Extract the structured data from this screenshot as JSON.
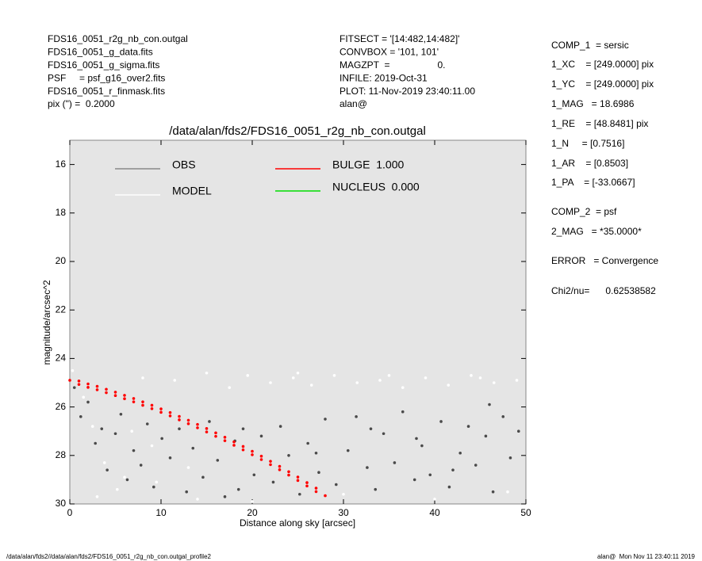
{
  "chart_data": {
    "type": "scatter",
    "title": "/data/alan/fds2/FDS16_0051_r2g_nb_con.outgal",
    "xlabel": "Distance along sky [arcsec]",
    "ylabel": "magnitude/arcsec^2",
    "xlim": [
      0,
      50
    ],
    "xticks": [
      0,
      10,
      20,
      30,
      40,
      50
    ],
    "ylim": [
      30,
      15
    ],
    "yticks": [
      16,
      18,
      20,
      22,
      24,
      26,
      28,
      30
    ],
    "header_left": [
      "FDS16_0051_r2g_nb_con.outgal",
      "FDS16_0051_g_data.fits",
      "FDS16_0051_g_sigma.fits",
      "PSF     = psf_g16_over2.fits",
      "FDS16_0051_r_finmask.fits",
      "pix (\") =  0.2000"
    ],
    "header_mid": [
      "FITSECT = '[14:482,14:482]'",
      "CONVBOX = '101, 101'",
      "MAGZPT  =                  0.",
      "INFILE: 2019-Oct-31",
      "PLOT: 11-Nov-2019 23:40:11.00",
      "alan@"
    ],
    "header_right": [
      "COMP_1  = sersic",
      "1_XC    = [249.0000] pix",
      "1_YC    = [249.0000] pix",
      "1_MAG   = 18.6986",
      "1_RE    = [48.8481] pix",
      "1_N     = [0.7516]",
      "1_AR    = [0.8503]",
      "1_PA    = [-33.0667]",
      "COMP_2  = psf",
      "2_MAG   = *35.0000*",
      "ERROR   = Convergence",
      "Chi2/nu=      0.62538582"
    ],
    "footer_left": "/data/alan/fds2//data/alan/fds2/FDS16_0051_r2g_nb_con.outgal_profile2",
    "footer_right": "alan@  Mon Nov 11 23:40:11 2019",
    "series": [
      {
        "name": "OBS",
        "color": "#4a4a4a",
        "legend_color": "#888888",
        "x": [
          0.5,
          1.2,
          2.0,
          2.8,
          3.5,
          4.1,
          5.0,
          5.6,
          6.3,
          7.0,
          7.8,
          8.5,
          9.2,
          10.1,
          11.0,
          12.0,
          12.8,
          13.5,
          14.6,
          15.3,
          16.2,
          17.0,
          18.1,
          19.0,
          20.2,
          21.0,
          22.3,
          23.1,
          24.0,
          25.2,
          26.1,
          27.3,
          28.0,
          29.2,
          30.5,
          31.4,
          32.6,
          33.5,
          34.4,
          35.6,
          36.5,
          37.8,
          38.6,
          39.5,
          40.7,
          41.6,
          42.8,
          43.7,
          44.5,
          45.6,
          46.4,
          47.5,
          48.3,
          49.2,
          33.0,
          38.0,
          42.0,
          46.0,
          27.0,
          18.5
        ],
        "values": [
          25.2,
          26.4,
          25.8,
          27.5,
          26.9,
          28.6,
          27.1,
          26.3,
          29.0,
          27.8,
          28.4,
          26.7,
          29.3,
          27.3,
          28.1,
          26.9,
          29.5,
          27.7,
          28.9,
          26.6,
          28.2,
          29.7,
          27.4,
          26.9,
          28.8,
          27.2,
          29.1,
          26.8,
          28.0,
          29.6,
          27.5,
          28.7,
          26.5,
          29.2,
          27.8,
          26.4,
          28.5,
          29.4,
          27.1,
          28.3,
          26.2,
          29.0,
          27.6,
          28.8,
          26.6,
          29.3,
          27.9,
          26.8,
          28.4,
          27.2,
          29.5,
          26.4,
          28.1,
          27.0,
          26.9,
          27.3,
          28.6,
          25.9,
          27.9,
          29.4
        ]
      },
      {
        "name": "MODEL",
        "color": "#ffffff",
        "legend_color": "#ffffff",
        "x": [
          0.3,
          1.5,
          2.5,
          3.8,
          5.2,
          6.8,
          8.0,
          9.5,
          11.5,
          13.0,
          15.0,
          17.5,
          19.5,
          22.0,
          24.5,
          26.5,
          29.0,
          31.5,
          34.0,
          36.5,
          39.0,
          41.5,
          44.0,
          46.5,
          49.0,
          3.0,
          6.0,
          9.0,
          14.0,
          20.0,
          30.0,
          40.0,
          48.0,
          25.0,
          35.0,
          45.0
        ],
        "values": [
          24.5,
          25.6,
          26.8,
          28.3,
          29.4,
          27.0,
          24.8,
          29.1,
          24.9,
          28.5,
          24.6,
          25.2,
          24.7,
          25.0,
          24.8,
          25.1,
          24.7,
          25.0,
          24.9,
          25.2,
          24.8,
          25.1,
          24.7,
          25.0,
          24.9,
          29.7,
          28.9,
          27.6,
          29.8,
          29.9,
          29.6,
          29.8,
          29.5,
          24.6,
          24.7,
          24.8
        ]
      },
      {
        "name": "BULGE  1.000",
        "color": "#ff0000",
        "legend_color": "#ff0000",
        "x": [
          0,
          1,
          1,
          2,
          2,
          3,
          3,
          4,
          4,
          5,
          5,
          6,
          6,
          7,
          7,
          8,
          8,
          9,
          9,
          10,
          10,
          11,
          11,
          12,
          12,
          13,
          13,
          14,
          14,
          15,
          15,
          16,
          16,
          17,
          17,
          18,
          18,
          19,
          19,
          20,
          20,
          21,
          21,
          22,
          22,
          23,
          23,
          24,
          24,
          25,
          25,
          26,
          26,
          27,
          27,
          28
        ],
        "values": [
          24.9,
          24.93,
          25.07,
          25.05,
          25.19,
          25.15,
          25.29,
          25.27,
          25.41,
          25.39,
          25.53,
          25.52,
          25.66,
          25.65,
          25.79,
          25.79,
          25.93,
          25.93,
          26.07,
          26.08,
          26.22,
          26.23,
          26.37,
          26.39,
          26.53,
          26.55,
          26.69,
          26.72,
          26.86,
          26.89,
          27.03,
          27.07,
          27.21,
          27.25,
          27.39,
          27.44,
          27.58,
          27.63,
          27.77,
          27.83,
          27.97,
          28.03,
          28.17,
          28.24,
          28.38,
          28.45,
          28.59,
          28.67,
          28.81,
          28.89,
          29.03,
          29.12,
          29.26,
          29.35,
          29.49,
          29.66
        ]
      },
      {
        "name": "NUCLEUS  0.000",
        "color": "#00dd00",
        "legend_color": "#00dd00",
        "x": [],
        "values": []
      }
    ]
  }
}
